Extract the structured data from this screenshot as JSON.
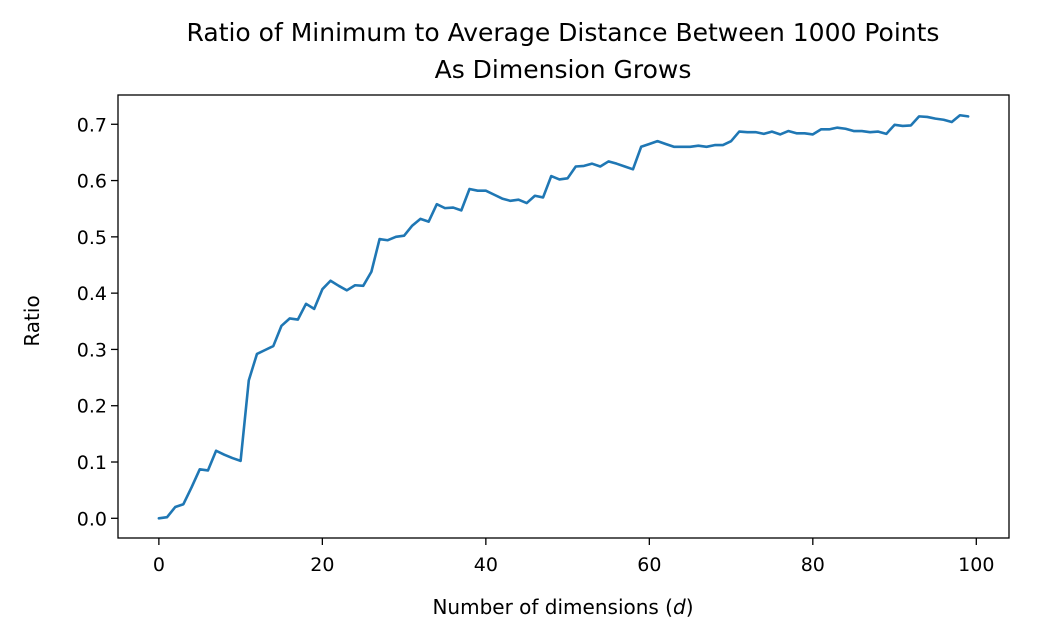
{
  "chart_data": {
    "type": "line",
    "title": "Ratio of Minimum to Average Distance Between 1000 Points",
    "subtitle": "As Dimension Grows",
    "xlabel": "Number of dimensions (",
    "xlabel_var": "d",
    "xlabel_end": ")",
    "ylabel": "Ratio",
    "xlim": [
      -5,
      104
    ],
    "ylim": [
      -0.035,
      0.752
    ],
    "xticks": [
      0,
      20,
      40,
      60,
      80,
      100
    ],
    "xtick_labels": [
      "0",
      "20",
      "40",
      "60",
      "80",
      "100"
    ],
    "yticks": [
      0.0,
      0.1,
      0.2,
      0.3,
      0.4,
      0.5,
      0.6,
      0.7
    ],
    "ytick_labels": [
      "0.0",
      "0.1",
      "0.2",
      "0.3",
      "0.4",
      "0.5",
      "0.6",
      "0.7"
    ],
    "grid": false,
    "colors": {
      "series": "#1f77b4"
    },
    "series": [
      {
        "x": [
          0,
          1,
          2,
          3,
          4,
          5,
          6,
          7,
          8,
          9,
          10,
          11,
          12,
          13,
          14,
          15,
          16,
          17,
          18,
          19,
          20,
          21,
          22,
          23,
          24,
          25,
          26,
          27,
          28,
          29,
          30,
          31,
          32,
          33,
          34,
          35,
          36,
          37,
          38,
          39,
          40,
          41,
          42,
          43,
          44,
          45,
          46,
          47,
          48,
          49,
          50,
          51,
          52,
          53,
          54,
          55,
          56,
          57,
          58,
          59,
          60,
          61,
          62,
          63,
          64,
          65,
          66,
          67,
          68,
          69,
          70,
          71,
          72,
          73,
          74,
          75,
          76,
          77,
          78,
          79,
          80,
          81,
          82,
          83,
          84,
          85,
          86,
          87,
          88,
          89,
          90,
          91,
          92,
          93,
          94,
          95,
          96,
          97,
          98,
          99
        ],
        "y": [
          0.0,
          0.002,
          0.02,
          0.025,
          0.055,
          0.087,
          0.085,
          0.12,
          0.113,
          0.107,
          0.102,
          0.245,
          0.292,
          0.299,
          0.306,
          0.342,
          0.355,
          0.353,
          0.381,
          0.372,
          0.407,
          0.422,
          0.413,
          0.405,
          0.414,
          0.413,
          0.438,
          0.496,
          0.494,
          0.5,
          0.502,
          0.52,
          0.532,
          0.527,
          0.558,
          0.551,
          0.552,
          0.547,
          0.585,
          0.582,
          0.582,
          0.575,
          0.568,
          0.564,
          0.566,
          0.56,
          0.573,
          0.57,
          0.608,
          0.602,
          0.604,
          0.625,
          0.626,
          0.63,
          0.625,
          0.634,
          0.63,
          0.625,
          0.62,
          0.66,
          0.665,
          0.67,
          0.665,
          0.66,
          0.66,
          0.66,
          0.662,
          0.66,
          0.663,
          0.663,
          0.67,
          0.687,
          0.686,
          0.686,
          0.683,
          0.687,
          0.682,
          0.688,
          0.684,
          0.684,
          0.682,
          0.691,
          0.691,
          0.694,
          0.692,
          0.688,
          0.688,
          0.686,
          0.687,
          0.683,
          0.699,
          0.697,
          0.698,
          0.714,
          0.713,
          0.71,
          0.708,
          0.704,
          0.716,
          0.714
        ]
      }
    ]
  }
}
